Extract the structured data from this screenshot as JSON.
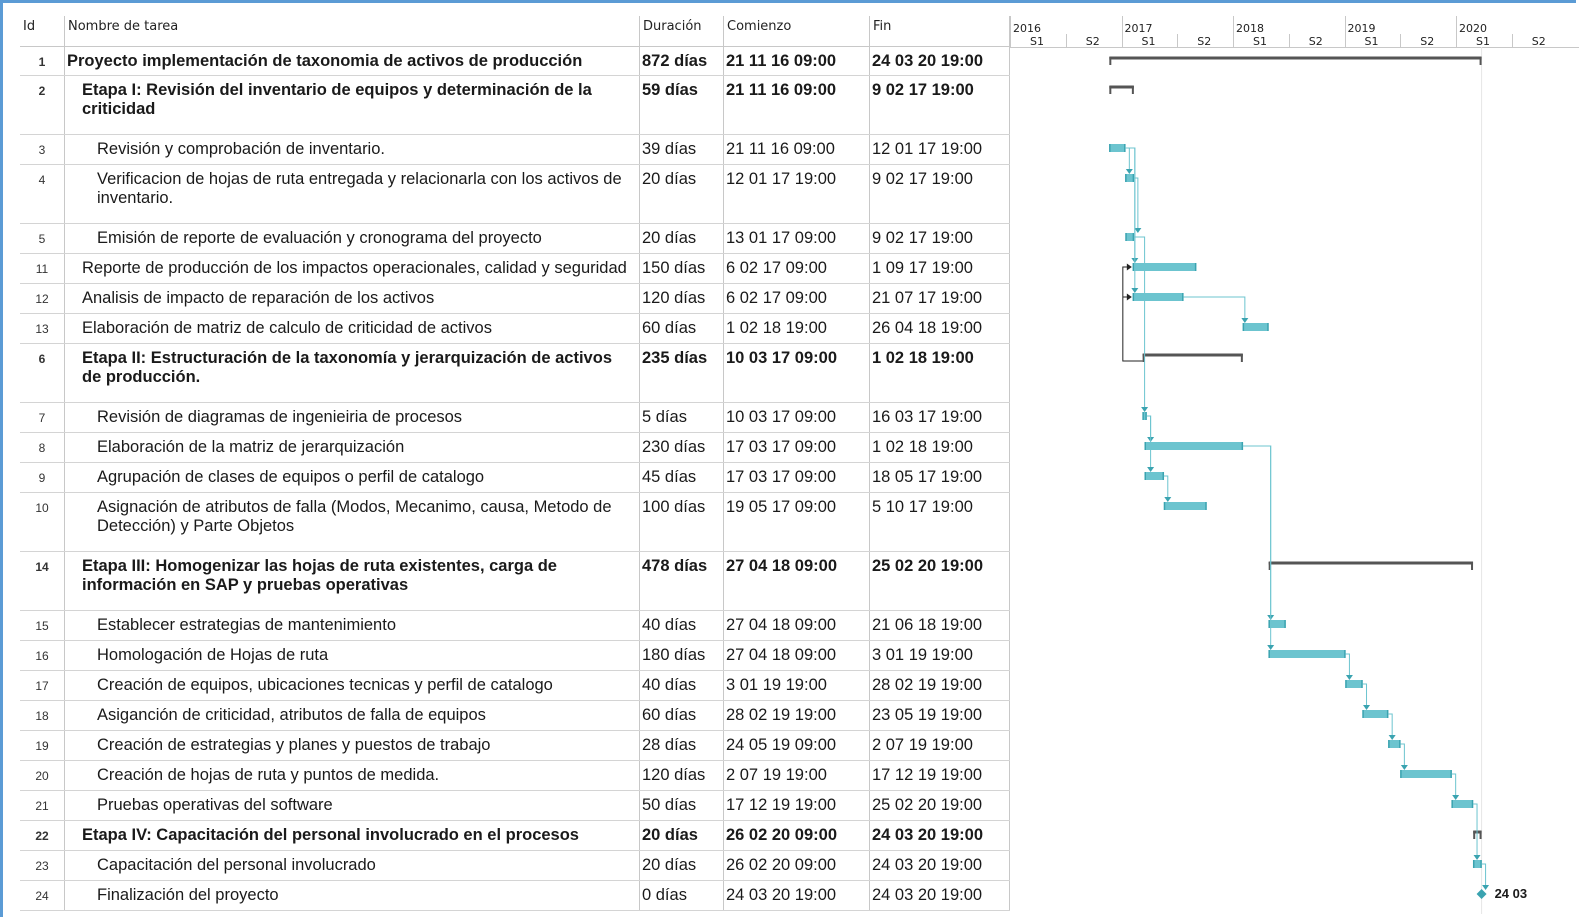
{
  "columns": {
    "id": "Id",
    "name": "Nombre de tarea",
    "duration": "Duración",
    "start": "Comienzo",
    "end": "Fin"
  },
  "timeline": {
    "years": [
      "2016",
      "2017",
      "2018",
      "2019",
      "2020"
    ],
    "halves": [
      "S1",
      "S2",
      "S1",
      "S2",
      "S1",
      "S2",
      "S1",
      "S2",
      "S1",
      "S2"
    ]
  },
  "tasks": [
    {
      "id": "1",
      "name": "Proyecto implementación de taxonomia de activos de producción",
      "duration": "872 días",
      "start": "21 11 16 09:00",
      "end": "24 03 20 19:00",
      "level": 0,
      "summary": true
    },
    {
      "id": "2",
      "name": "Etapa I: Revisión del inventario de equipos y determinación de la criticidad",
      "duration": "59 días",
      "start": "21 11 16 09:00",
      "end": "9 02 17 19:00",
      "level": 1,
      "summary": true
    },
    {
      "id": "3",
      "name": "Revisión y comprobación de inventario.",
      "duration": "39 días",
      "start": "21 11 16 09:00",
      "end": "12 01 17 19:00",
      "level": 2,
      "summary": false
    },
    {
      "id": "4",
      "name": "Verificacion de hojas de ruta entregada y relacionarla con los activos de inventario.",
      "duration": "20 días",
      "start": "12 01 17 19:00",
      "end": "9 02 17 19:00",
      "level": 2,
      "summary": false
    },
    {
      "id": "5",
      "name": "Emisión de reporte de evaluación y cronograma del proyecto",
      "duration": "20 días",
      "start": "13 01 17 09:00",
      "end": "9 02 17 19:00",
      "level": 2,
      "summary": false
    },
    {
      "id": "11",
      "name": "Reporte de producción de los impactos operacionales, calidad y seguridad",
      "duration": "150 días",
      "start": "6 02 17 09:00",
      "end": "1 09 17 19:00",
      "level": 1,
      "summary": false
    },
    {
      "id": "12",
      "name": "Analisis de impacto de reparación de los activos",
      "duration": "120 días",
      "start": "6 02 17 09:00",
      "end": "21 07 17 19:00",
      "level": 1,
      "summary": false
    },
    {
      "id": "13",
      "name": "Elaboración de matriz de calculo de criticidad de activos",
      "duration": "60 días",
      "start": "1 02 18 19:00",
      "end": "26 04 18 19:00",
      "level": 1,
      "summary": false
    },
    {
      "id": "6",
      "name": "Etapa II: Estructuración de la taxonomía y jerarquización de activos de producción.",
      "duration": "235 días",
      "start": "10 03 17 09:00",
      "end": "1 02 18 19:00",
      "level": 1,
      "summary": true
    },
    {
      "id": "7",
      "name": "Revisión de diagramas de ingenieiria de procesos",
      "duration": "5 días",
      "start": "10 03 17 09:00",
      "end": "16 03 17 19:00",
      "level": 2,
      "summary": false
    },
    {
      "id": "8",
      "name": "Elaboración de la matriz de jerarquización",
      "duration": "230 días",
      "start": "17 03 17 09:00",
      "end": "1 02 18 19:00",
      "level": 2,
      "summary": false
    },
    {
      "id": "9",
      "name": "Agrupación de clases de equipos o perfil de catalogo",
      "duration": "45 días",
      "start": "17 03 17 09:00",
      "end": "18 05 17 19:00",
      "level": 2,
      "summary": false
    },
    {
      "id": "10",
      "name": "Asignación de atributos de falla (Modos, Mecanimo, causa, Metodo de Detección) y Parte Objetos",
      "duration": "100 días",
      "start": "19 05 17 09:00",
      "end": "5 10 17 19:00",
      "level": 2,
      "summary": false
    },
    {
      "id": "14",
      "name": "Etapa III: Homogenizar las hojas de ruta existentes, carga de información en SAP y pruebas operativas",
      "duration": "478 días",
      "start": "27 04 18 09:00",
      "end": "25 02 20 19:00",
      "level": 1,
      "summary": true
    },
    {
      "id": "15",
      "name": "Establecer estrategias de mantenimiento",
      "duration": "40 días",
      "start": "27 04 18 09:00",
      "end": "21 06 18 19:00",
      "level": 2,
      "summary": false
    },
    {
      "id": "16",
      "name": "Homologación de Hojas de ruta",
      "duration": "180 días",
      "start": "27 04 18 09:00",
      "end": "3 01 19 19:00",
      "level": 2,
      "summary": false
    },
    {
      "id": "17",
      "name": "Creación de equipos, ubicaciones tecnicas y perfil de catalogo",
      "duration": "40 días",
      "start": "3 01 19 19:00",
      "end": "28 02 19 19:00",
      "level": 2,
      "summary": false
    },
    {
      "id": "18",
      "name": "Asigan​ción de criticidad, atributos de falla de equipos",
      "duration": "60 días",
      "start": "28 02 19 19:00",
      "end": "23 05 19 19:00",
      "level": 2,
      "summary": false
    },
    {
      "id": "19",
      "name": "Creación de estrategias y planes y puestos de trabajo",
      "duration": "28 días",
      "start": "24 05 19 09:00",
      "end": "2 07 19 19:00",
      "level": 2,
      "summary": false
    },
    {
      "id": "20",
      "name": "Creación de hojas de ruta y puntos de medida.",
      "duration": "120 días",
      "start": "2 07 19 19:00",
      "end": "17 12 19 19:00",
      "level": 2,
      "summary": false
    },
    {
      "id": "21",
      "name": "Pruebas operativas del software",
      "duration": "50 días",
      "start": "17 12 19 19:00",
      "end": "25 02 20 19:00",
      "level": 2,
      "summary": false
    },
    {
      "id": "22",
      "name": "Etapa IV: Capacitación del personal involucrado en el procesos",
      "duration": "20 días",
      "start": "26 02 20 09:00",
      "end": "24 03 20 19:00",
      "level": 1,
      "summary": true
    },
    {
      "id": "23",
      "name": "Capacitación del personal involucrado",
      "duration": "20 días",
      "start": "26 02 20 09:00",
      "end": "24 03 20 19:00",
      "level": 2,
      "summary": false
    },
    {
      "id": "24",
      "name": "Finalización del proyecto",
      "duration": "0 días",
      "start": "24 03 20 19:00",
      "end": "24 03 20 19:00",
      "level": 2,
      "summary": false,
      "milestone": true
    }
  ],
  "milestone_label": "24 03",
  "colors": {
    "bar": "#6cc4cf",
    "bar_edge": "#3aa3b0",
    "summary": "#555555",
    "link": "#6cc4cf",
    "frame": "#5b9bd5"
  }
}
